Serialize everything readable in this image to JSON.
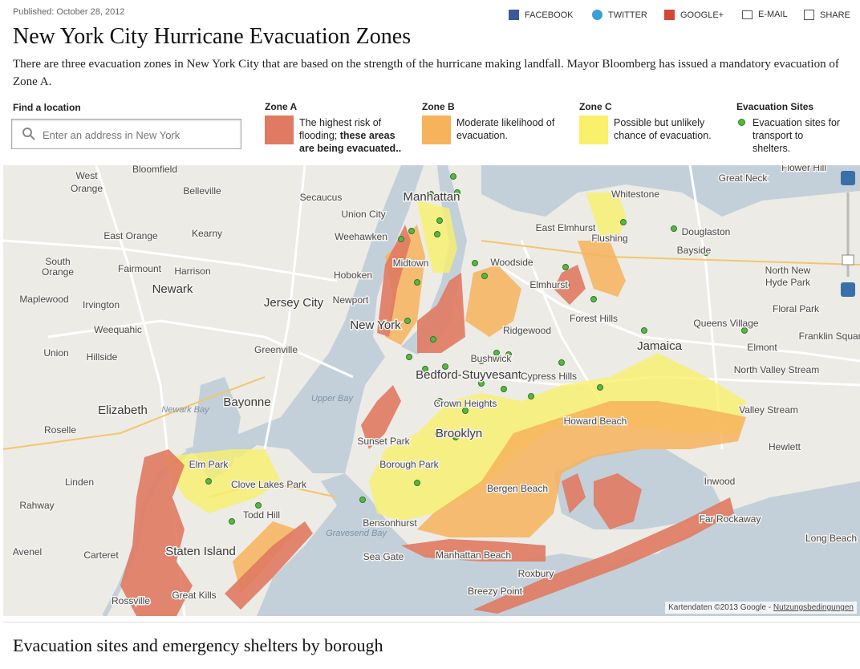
{
  "header": {
    "published": "Published: October 28, 2012",
    "title": "New York City Hurricane Evacuation Zones",
    "intro": "There are three evacuation zones in New York City that are based on the strength of the hurricane making landfall. Mayor Bloomberg has issued a mandatory evacuation of Zone A."
  },
  "share": [
    "FACEBOOK",
    "TWITTER",
    "GOOGLE+",
    "E-MAIL",
    "SHARE"
  ],
  "search": {
    "label": "Find a location",
    "placeholder": "Enter an address in New York"
  },
  "legend": [
    {
      "title": "Zone A",
      "text": "The highest risk of flooding; ",
      "emphasis": "these areas are being evacuated.."
    },
    {
      "title": "Zone B",
      "text": "Moderate likelihood of evacuation."
    },
    {
      "title": "Zone C",
      "text": "Possible but unlikely chance of evacuation."
    },
    {
      "title": "Evacuation Sites",
      "text": "Evacuation sites for transport to shelters."
    }
  ],
  "map": {
    "labels": [
      "Bloomfield",
      "West",
      "Orange",
      "Belleville",
      "Secaucus",
      "Union City",
      "Manhattan",
      "Weehawken",
      "East Orange",
      "Kearny",
      "South",
      "Orange",
      "Fairmount",
      "Harrison",
      "Hoboken",
      "Midtown",
      "Woodside",
      "Flushing",
      "Bayside",
      "Elmhurst",
      "North New",
      "Hyde Park",
      "Newark",
      "Maplewood",
      "Irvington",
      "Jersey City",
      "Newport",
      "Forest Hills",
      "Floral Park",
      "Weequahic",
      "New York",
      "Ridgewood",
      "Queens Village",
      "Franklin Square",
      "Union",
      "Hillside",
      "Greenville",
      "Bushwick",
      "Jamaica",
      "Elmont",
      "Bedford-Stuyvesant",
      "Cypress Hills",
      "North Valley Stream",
      "Bayonne",
      "Crown Heights",
      "Valley Stream",
      "Elizabeth",
      "Newark Bay",
      "Upper Bay",
      "Roselle",
      "Sunset Park",
      "Brooklyn",
      "Howard Beach",
      "Hewlett",
      "Borough Park",
      "Linden",
      "Clove Lakes Park",
      "Bergen Beach",
      "Inwood",
      "Rahway",
      "Todd Hill",
      "Bensonhurst",
      "Far Rockaway",
      "Gravesend Bay",
      "Staten Island",
      "Carteret",
      "Long Beach",
      "Avenel",
      "Manhattan Beach",
      "Sea Gate",
      "Breezy Point",
      "Roxbury",
      "Great Kills",
      "Rossville",
      "Great Neck",
      "Whitestone",
      "Douglaston",
      "Flower Hill",
      "East Elmhurst",
      "Elm Park"
    ],
    "attribution": "Kartendaten ©2013 Google - ",
    "terms": "Nutzungsbedingungen"
  },
  "section": {
    "title": "Evacuation sites and emergency shelters by borough"
  }
}
